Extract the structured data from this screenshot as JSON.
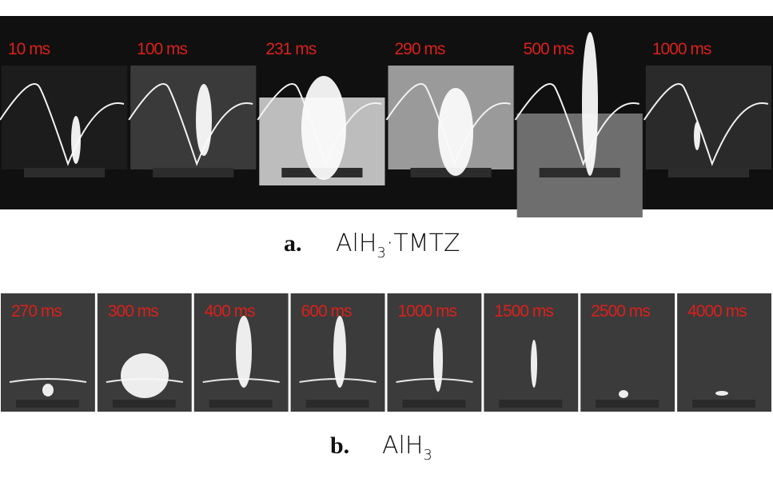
{
  "panel_a": {
    "frames": [
      "10 ms",
      "100 ms",
      "231 ms",
      "290 ms",
      "500 ms",
      "1000 ms"
    ],
    "caption": {
      "label": "a.",
      "formula": "AlH",
      "subscript": "3",
      "suffix": "·TMTZ"
    }
  },
  "panel_b": {
    "frames": [
      "270 ms",
      "300 ms",
      "400 ms",
      "600 ms",
      "1000 ms",
      "1500 ms",
      "2500 ms",
      "4000 ms"
    ],
    "caption": {
      "label": "b.",
      "formula": "AlH",
      "subscript": "3"
    }
  }
}
